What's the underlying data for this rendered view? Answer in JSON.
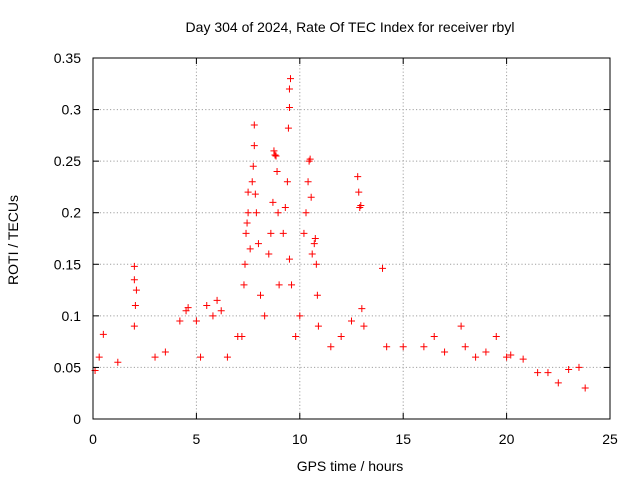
{
  "chart_data": {
    "type": "scatter",
    "title": "Day 304 of 2024, Rate Of TEC Index for receiver rbyl",
    "xlabel": "GPS time / hours",
    "ylabel": "ROTI / TECUs",
    "xlim": [
      0,
      25
    ],
    "ylim": [
      0,
      0.35
    ],
    "xticks": [
      0,
      5,
      10,
      15,
      20,
      25
    ],
    "xtick_labels": [
      "0",
      "5",
      "10",
      "15",
      "20",
      "25"
    ],
    "yticks": [
      0,
      0.05,
      0.1,
      0.15,
      0.2,
      0.25,
      0.3,
      0.35
    ],
    "ytick_labels": [
      "0",
      "0.05",
      "0.1",
      "0.15",
      "0.2",
      "0.25",
      "0.3",
      "0.35"
    ],
    "grid": true,
    "marker": "+",
    "color": "#ff0000",
    "series": [
      {
        "name": "ROTI",
        "points": [
          [
            0.1,
            0.047
          ],
          [
            0.3,
            0.06
          ],
          [
            0.5,
            0.082
          ],
          [
            1.2,
            0.055
          ],
          [
            2.0,
            0.148
          ],
          [
            2.0,
            0.135
          ],
          [
            2.1,
            0.125
          ],
          [
            2.05,
            0.11
          ],
          [
            2.0,
            0.09
          ],
          [
            3.0,
            0.06
          ],
          [
            3.5,
            0.065
          ],
          [
            4.2,
            0.095
          ],
          [
            4.5,
            0.105
          ],
          [
            4.6,
            0.108
          ],
          [
            5.0,
            0.095
          ],
          [
            5.2,
            0.06
          ],
          [
            5.5,
            0.11
          ],
          [
            5.8,
            0.1
          ],
          [
            6.0,
            0.115
          ],
          [
            6.2,
            0.105
          ],
          [
            6.5,
            0.06
          ],
          [
            7.0,
            0.08
          ],
          [
            7.2,
            0.08
          ],
          [
            7.3,
            0.13
          ],
          [
            7.35,
            0.15
          ],
          [
            7.4,
            0.18
          ],
          [
            7.45,
            0.19
          ],
          [
            7.5,
            0.2
          ],
          [
            7.5,
            0.22
          ],
          [
            7.6,
            0.165
          ],
          [
            7.7,
            0.23
          ],
          [
            7.75,
            0.245
          ],
          [
            7.8,
            0.265
          ],
          [
            7.8,
            0.285
          ],
          [
            7.85,
            0.218
          ],
          [
            7.9,
            0.2
          ],
          [
            8.0,
            0.17
          ],
          [
            8.1,
            0.12
          ],
          [
            8.3,
            0.1
          ],
          [
            8.5,
            0.16
          ],
          [
            8.6,
            0.18
          ],
          [
            8.7,
            0.21
          ],
          [
            8.75,
            0.26
          ],
          [
            8.8,
            0.256
          ],
          [
            8.85,
            0.255
          ],
          [
            8.9,
            0.24
          ],
          [
            8.95,
            0.2
          ],
          [
            9.0,
            0.13
          ],
          [
            9.2,
            0.18
          ],
          [
            9.3,
            0.205
          ],
          [
            9.4,
            0.23
          ],
          [
            9.45,
            0.282
          ],
          [
            9.5,
            0.302
          ],
          [
            9.5,
            0.32
          ],
          [
            9.55,
            0.33
          ],
          [
            9.5,
            0.155
          ],
          [
            9.6,
            0.13
          ],
          [
            9.8,
            0.08
          ],
          [
            10.0,
            0.1
          ],
          [
            10.2,
            0.18
          ],
          [
            10.3,
            0.2
          ],
          [
            10.4,
            0.23
          ],
          [
            10.45,
            0.25
          ],
          [
            10.5,
            0.252
          ],
          [
            10.55,
            0.215
          ],
          [
            10.6,
            0.16
          ],
          [
            10.7,
            0.17
          ],
          [
            10.75,
            0.175
          ],
          [
            10.8,
            0.15
          ],
          [
            10.85,
            0.12
          ],
          [
            10.9,
            0.09
          ],
          [
            11.5,
            0.07
          ],
          [
            12.0,
            0.08
          ],
          [
            12.5,
            0.095
          ],
          [
            12.8,
            0.235
          ],
          [
            12.85,
            0.22
          ],
          [
            12.9,
            0.205
          ],
          [
            12.95,
            0.207
          ],
          [
            13.0,
            0.107
          ],
          [
            13.1,
            0.09
          ],
          [
            14.0,
            0.146
          ],
          [
            14.2,
            0.07
          ],
          [
            15.0,
            0.07
          ],
          [
            16.0,
            0.07
          ],
          [
            16.5,
            0.08
          ],
          [
            17.0,
            0.065
          ],
          [
            17.8,
            0.09
          ],
          [
            18.0,
            0.07
          ],
          [
            18.5,
            0.06
          ],
          [
            19.0,
            0.065
          ],
          [
            19.5,
            0.08
          ],
          [
            20.0,
            0.06
          ],
          [
            20.2,
            0.062
          ],
          [
            20.8,
            0.058
          ],
          [
            21.5,
            0.045
          ],
          [
            22.0,
            0.045
          ],
          [
            22.5,
            0.035
          ],
          [
            23.0,
            0.048
          ],
          [
            23.5,
            0.05
          ],
          [
            23.8,
            0.03
          ]
        ]
      }
    ]
  }
}
